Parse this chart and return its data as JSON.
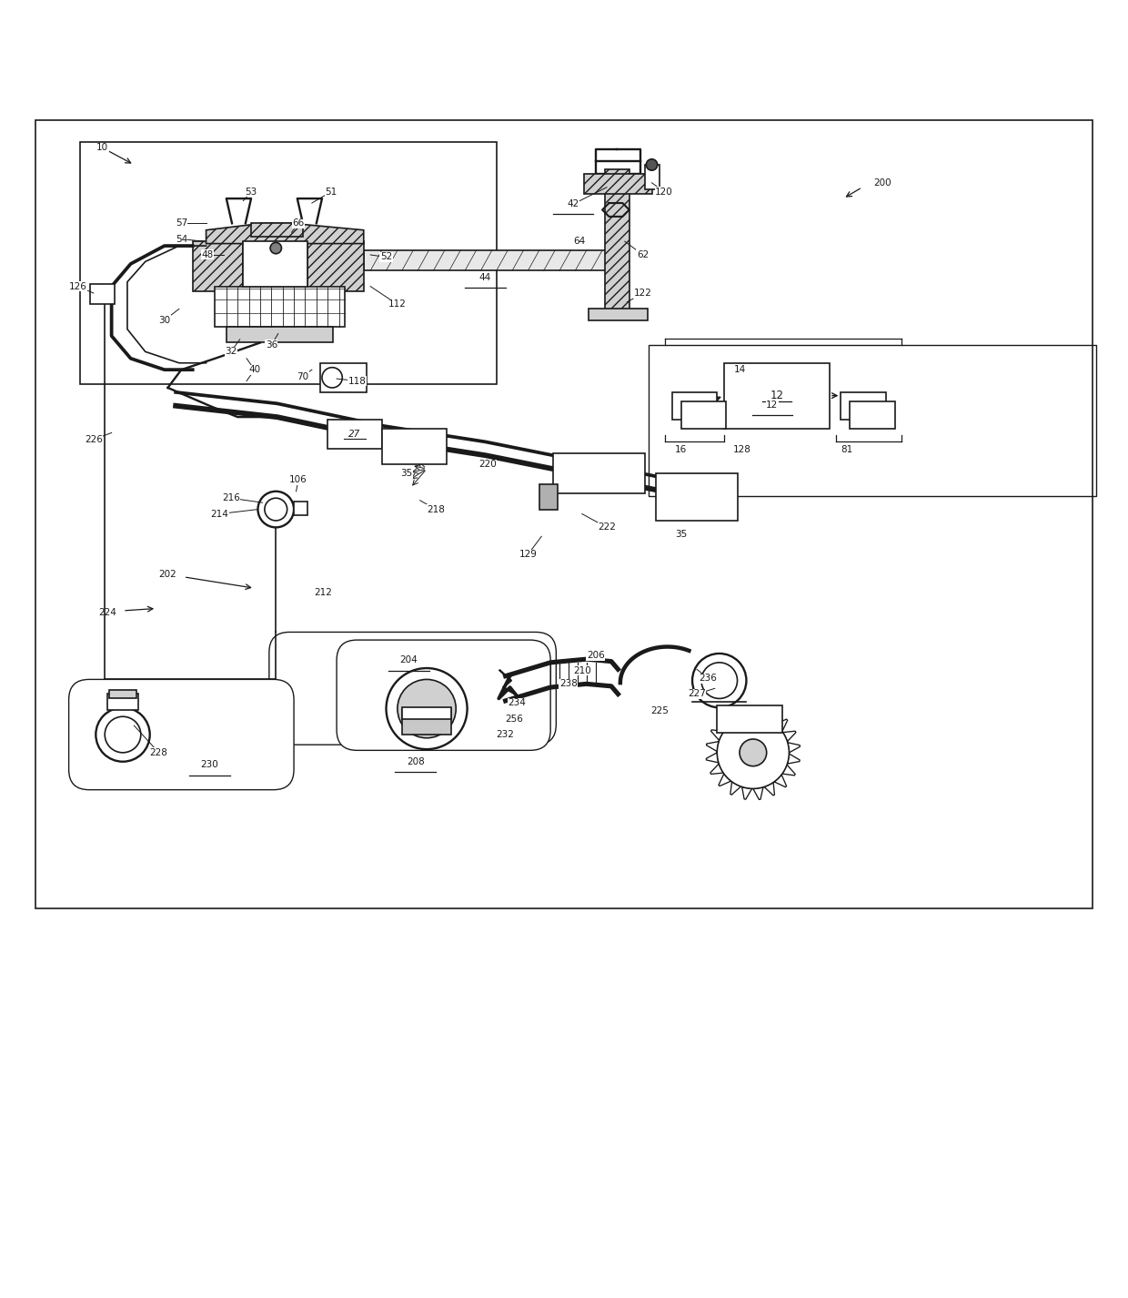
{
  "fig_width": 12.4,
  "fig_height": 14.26,
  "bg_color": "#ffffff",
  "line_color": "#1a1a1a"
}
